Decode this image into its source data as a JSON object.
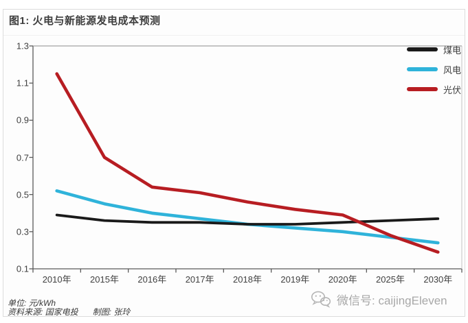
{
  "header": {
    "title": "图1: 火电与新能源发电成本预测"
  },
  "chart_data": {
    "type": "line",
    "title": "图1: 火电与新能源发电成本预测",
    "unit": "元/kWh",
    "categories": [
      "2010年",
      "2015年",
      "2016年",
      "2017年",
      "2018年",
      "2019年",
      "2020年",
      "2025年",
      "2030年"
    ],
    "series": [
      {
        "id": "coal-power",
        "name": "煤电",
        "color": "#1a1a1a",
        "values": [
          0.39,
          0.36,
          0.35,
          0.35,
          0.34,
          0.34,
          0.35,
          0.36,
          0.37
        ]
      },
      {
        "id": "wind-power",
        "name": "风电",
        "color": "#2fb3da",
        "values": [
          0.52,
          0.45,
          0.4,
          0.37,
          0.34,
          0.32,
          0.3,
          0.27,
          0.24
        ]
      },
      {
        "id": "solar-pv",
        "name": "光伏",
        "color": "#b71d22",
        "values": [
          1.15,
          0.7,
          0.54,
          0.51,
          0.46,
          0.42,
          0.39,
          0.28,
          0.19
        ]
      }
    ],
    "ylim": [
      0.1,
      1.3
    ],
    "yticks": [
      0.1,
      0.3,
      0.5,
      0.7,
      0.9,
      1.1,
      1.3
    ],
    "grid": false,
    "legend_position": "top-right"
  },
  "footer": {
    "unit_label": "单位: 元/kWh",
    "source_label": "资料来源: 国家电投",
    "credit_label": "制图: 张玲",
    "wechat_label": "微信号: caijingEleven"
  },
  "colors": {
    "axis": "#595959",
    "frame_top": "#8c8c8c",
    "frame_right": "#c4c4c4",
    "wechat_icon": "#b5b5b5"
  }
}
